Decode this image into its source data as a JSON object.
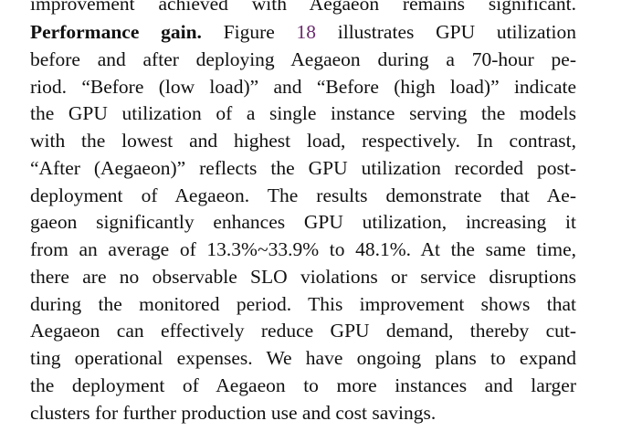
{
  "paragraph": {
    "previous_line": "improvement achieved with Aegaeon remains significant.",
    "heading": "Performance gain.",
    "first_line_before_ref": "Figure",
    "figure_ref": "18",
    "first_line_after_ref": "illustrates GPU utilization",
    "lines": [
      "before and after deploying Aegaeon during a 70-hour pe-",
      "riod. “Before (low load)” and “Before (high load)” indicate",
      "the GPU utilization of a single instance serving the models",
      "with the lowest and highest load, respectively. In contrast,",
      "“After (Aegaeon)” reflects the GPU utilization recorded post-",
      "deployment of Aegaeon. The results demonstrate that Ae-",
      "gaeon significantly enhances GPU utilization, increasing it",
      "from an average of 13.3%~33.9% to 48.1%. At the same time,",
      "there are no observable SLO violations or service disruptions",
      "during the monitored period. This improvement shows that",
      "Aegaeon can effectively reduce GPU demand, thereby cut-",
      "ting operational expenses. We have ongoing plans to expand",
      "the deployment of Aegaeon to more instances and larger",
      "clusters for further production use and cost savings."
    ]
  }
}
